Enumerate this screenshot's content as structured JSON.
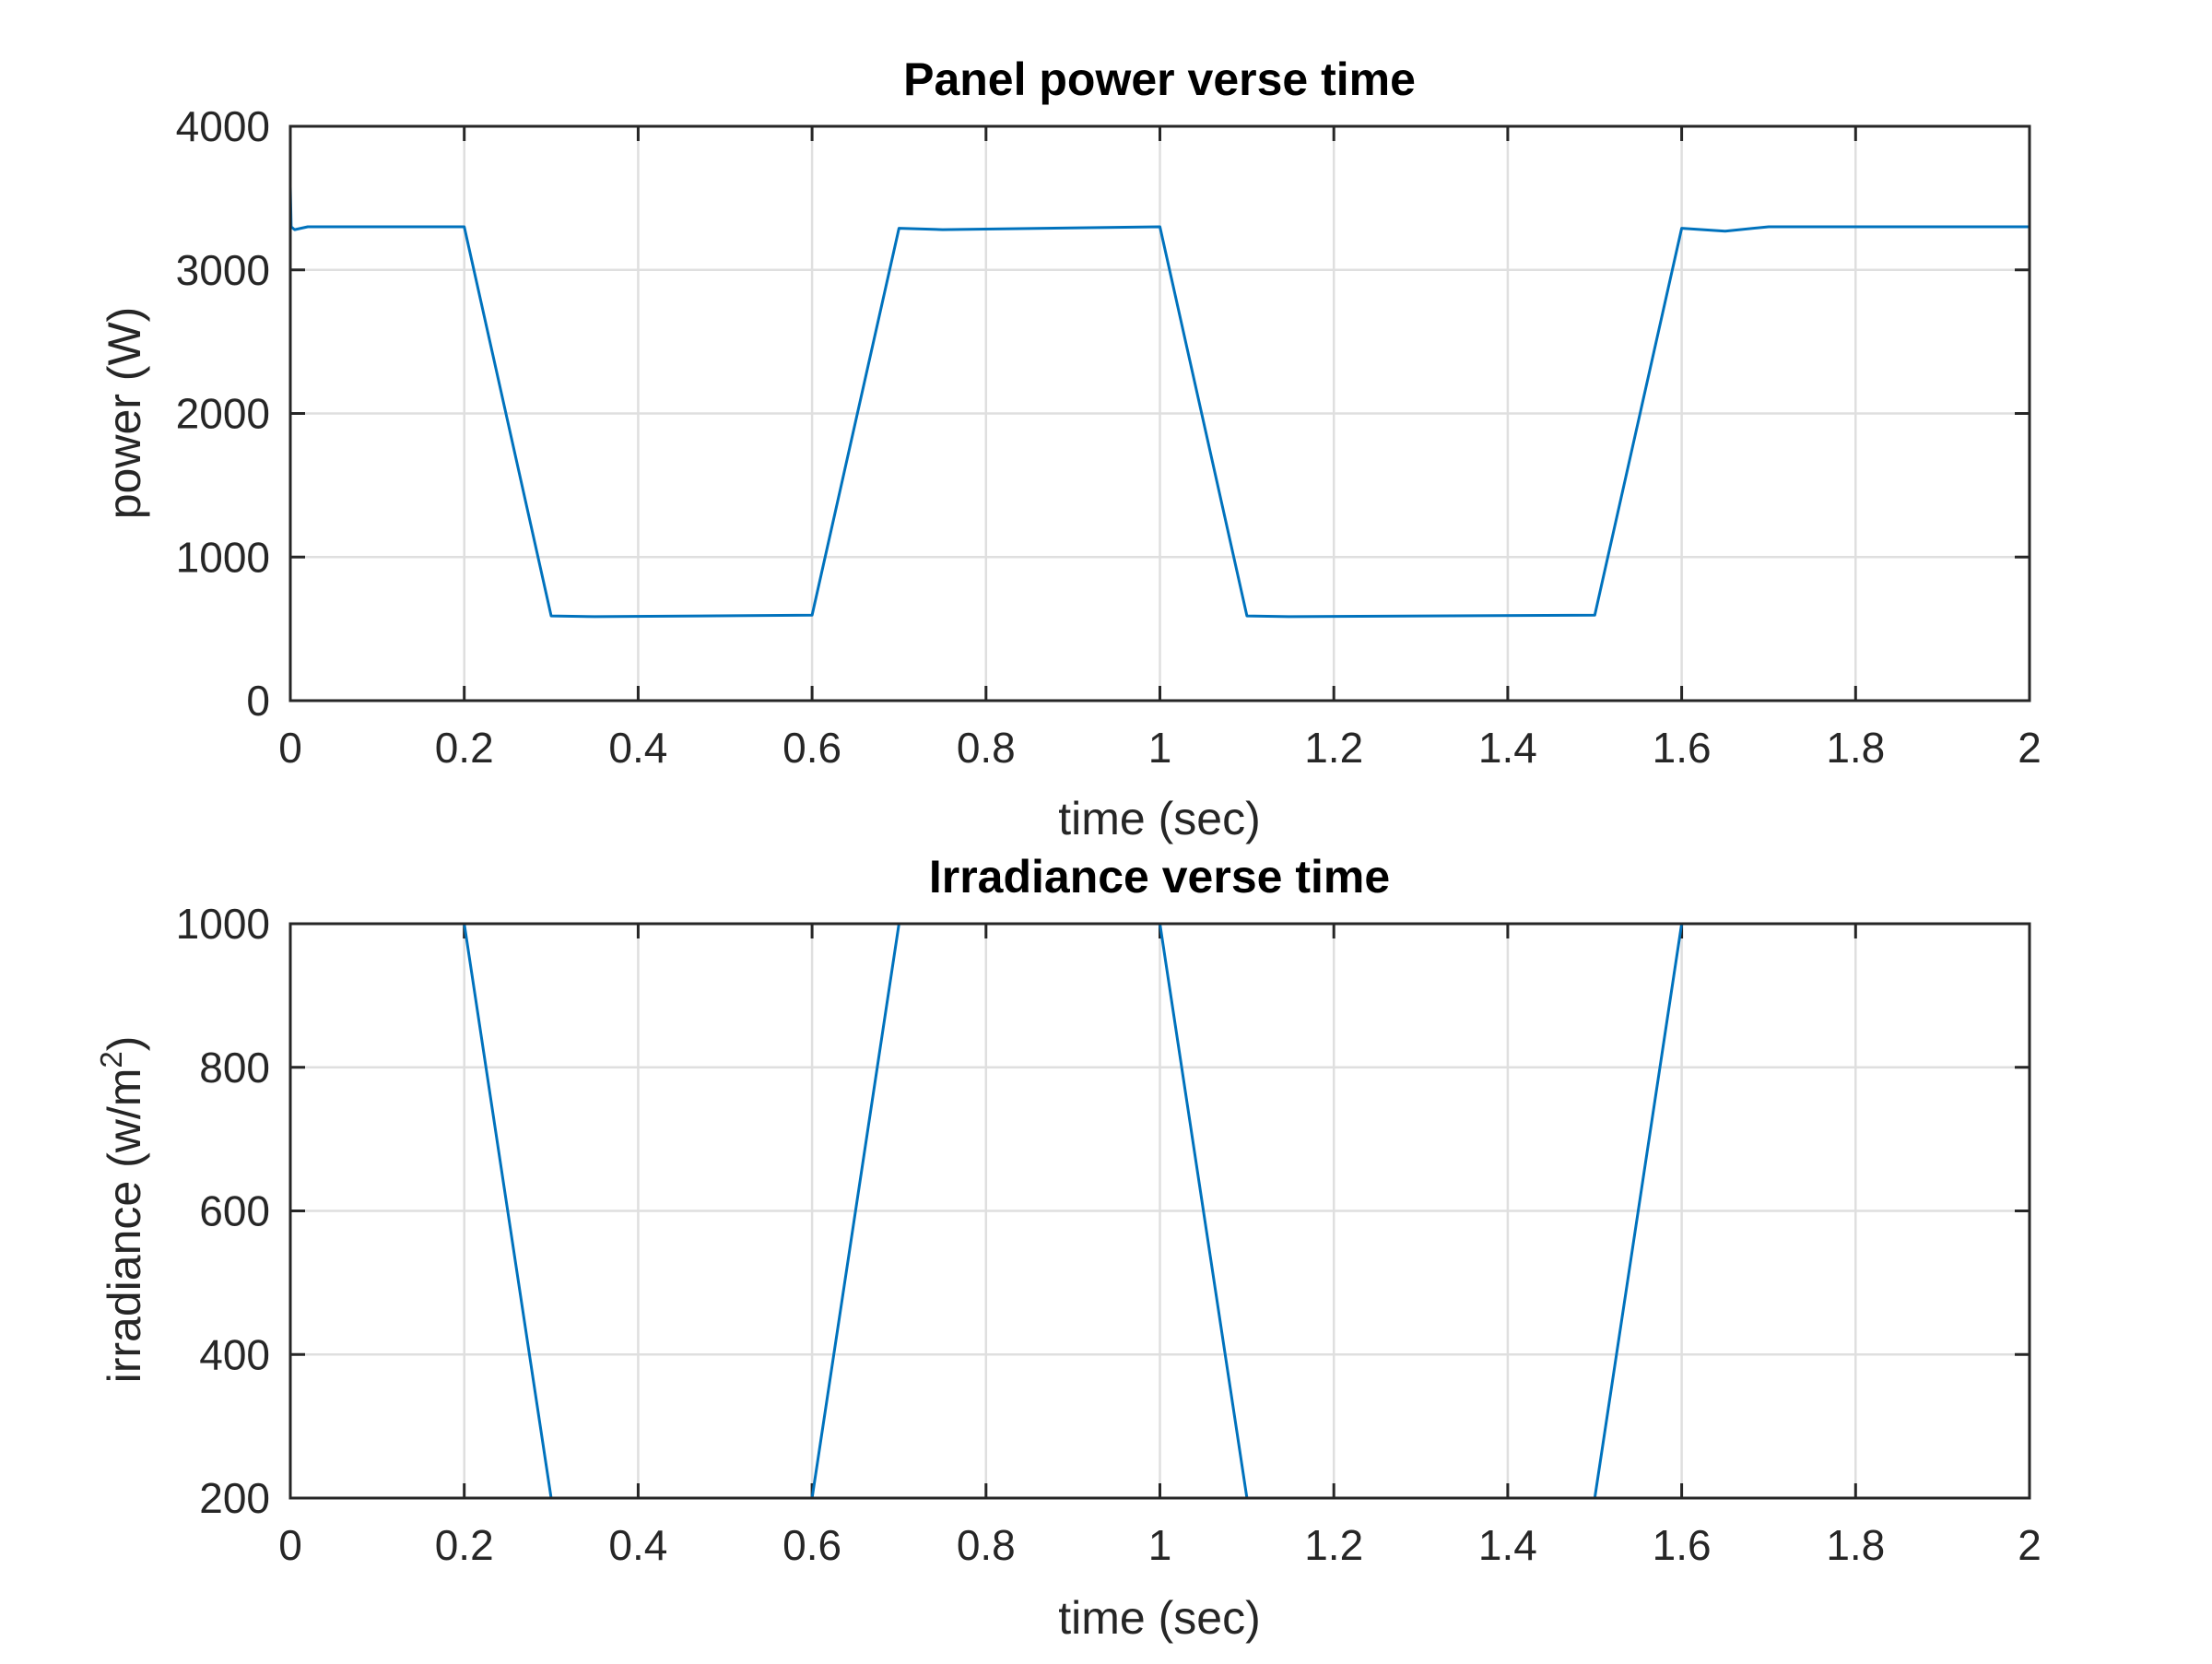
{
  "chart_data": [
    {
      "type": "line",
      "title": "Panel power verse time",
      "xlabel": "time (sec)",
      "ylabel": "power (W)",
      "xlim": [
        0,
        2
      ],
      "ylim": [
        0,
        4000
      ],
      "xticks": [
        "0",
        "0.2",
        "0.4",
        "0.6",
        "0.8",
        "1",
        "1.2",
        "1.4",
        "1.6",
        "1.8",
        "2"
      ],
      "yticks": [
        "0",
        "1000",
        "2000",
        "3000",
        "4000"
      ],
      "grid": true,
      "color": "#0072BD",
      "series": [
        {
          "x": [
            0,
            0.001,
            0.005,
            0.02,
            0.2,
            0.3,
            0.35,
            0.6,
            0.7,
            0.75,
            1.0,
            1.1,
            1.15,
            1.5,
            1.6,
            1.65,
            1.7,
            2.0
          ],
          "y": [
            3580,
            3300,
            3280,
            3300,
            3300,
            590,
            585,
            595,
            3290,
            3280,
            3300,
            590,
            585,
            595,
            3290,
            3270,
            3300,
            3300
          ]
        }
      ]
    },
    {
      "type": "line",
      "title": "Irradiance verse time",
      "xlabel": "time (sec)",
      "ylabel": "irradiance (w/m",
      "ylabel_sup": "2",
      "ylabel_tail": ")",
      "xlim": [
        0,
        2
      ],
      "ylim": [
        200,
        1000
      ],
      "xticks": [
        "0",
        "0.2",
        "0.4",
        "0.6",
        "0.8",
        "1",
        "1.2",
        "1.4",
        "1.6",
        "1.8",
        "2"
      ],
      "yticks": [
        "200",
        "400",
        "600",
        "800",
        "1000"
      ],
      "grid": true,
      "color": "#0072BD",
      "series": [
        {
          "x": [
            0,
            0.2,
            0.3,
            0.6,
            0.7,
            1.0,
            1.1,
            1.5,
            1.6,
            2.0
          ],
          "y": [
            1000,
            1000,
            200,
            200,
            1000,
            1000,
            200,
            200,
            1000,
            1000
          ]
        }
      ]
    }
  ]
}
